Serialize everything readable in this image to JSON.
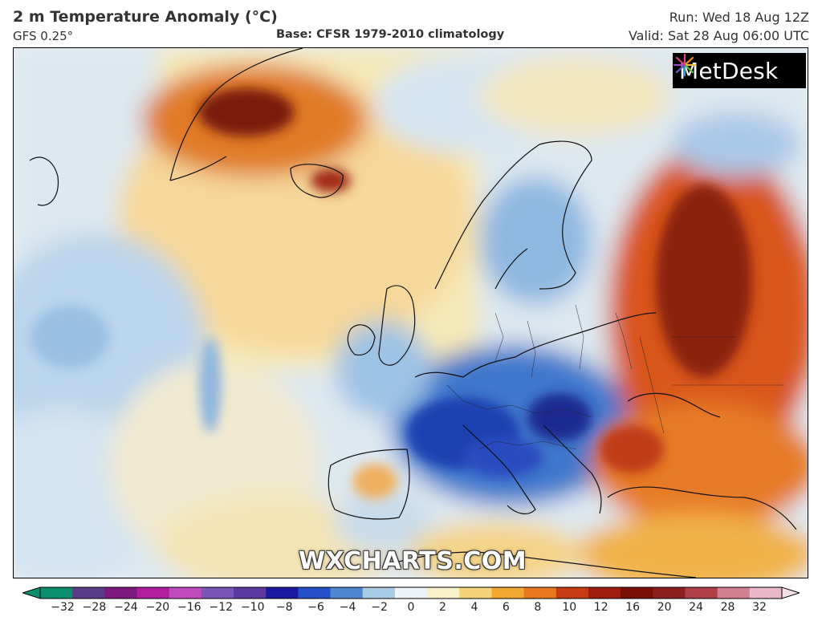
{
  "header": {
    "title": "2 m Temperature Anomaly (°C)",
    "model": "GFS 0.25°",
    "base": "Base: CFSR 1979-2010 climatology",
    "run": "Run: Wed 18 Aug 12Z",
    "valid": "Valid: Sat 28 Aug 06:00 UTC"
  },
  "brand": {
    "name": "MetDesk",
    "icon": "metdesk-logo-icon"
  },
  "watermark": "WXCHARTS.COM",
  "colorbar": {
    "ticks": [
      "−32",
      "−28",
      "−24",
      "−20",
      "−16",
      "−12",
      "−10",
      "−8",
      "−6",
      "−4",
      "−2",
      "0",
      "2",
      "4",
      "6",
      "8",
      "10",
      "12",
      "16",
      "20",
      "24",
      "28",
      "32"
    ],
    "colors": [
      "#0a8f6e",
      "#5a3d8a",
      "#7e1a7e",
      "#b21c9f",
      "#c04bbc",
      "#7b55b8",
      "#5a3aa0",
      "#1a1aa0",
      "#2750c8",
      "#4f88d0",
      "#a8cbe6",
      "#eef3f8",
      "#f8f0c8",
      "#f4d27a",
      "#f0a830",
      "#e87820",
      "#c83c14",
      "#a01e10",
      "#781008",
      "#8a2020",
      "#b04048",
      "#d28090",
      "#e8b8c8"
    ]
  }
}
